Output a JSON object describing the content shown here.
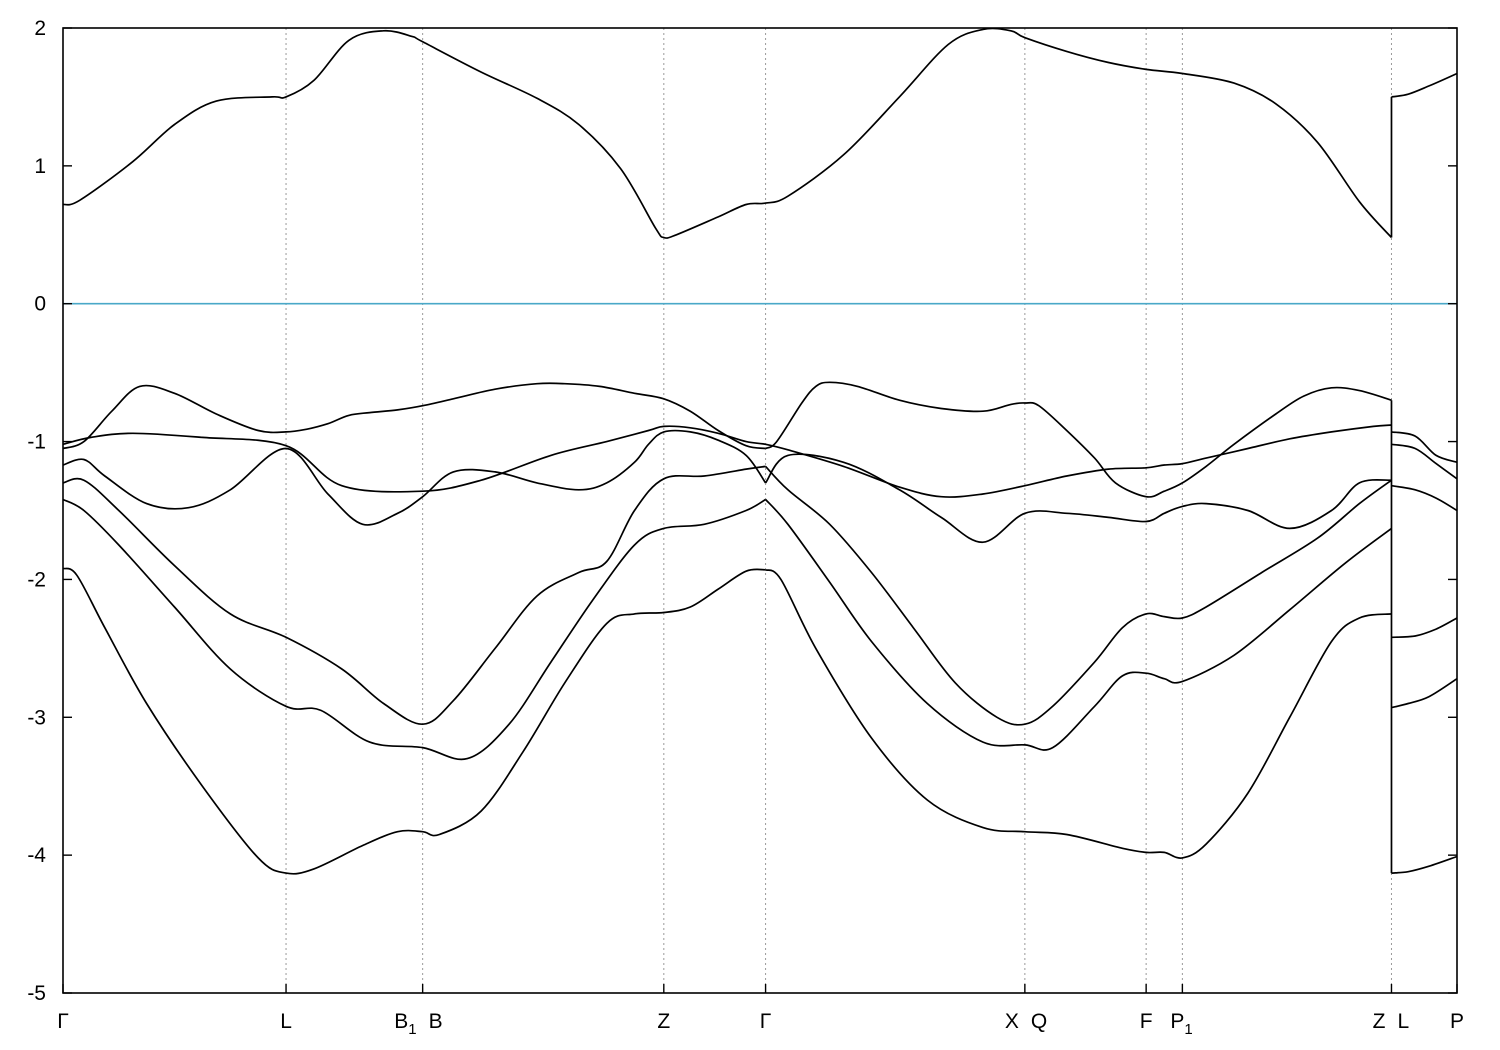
{
  "chart_data": {
    "type": "line",
    "title": "",
    "xlabel": "",
    "ylabel": "",
    "ylim": [
      -5,
      2
    ],
    "xlim": [
      0,
      1
    ],
    "grid": "vertical dashed lines at high-symmetry points",
    "legend": "none",
    "y_ticks": [
      "2",
      "1",
      "0",
      "-1",
      "-2",
      "-3",
      "-4",
      "-5"
    ],
    "y_tick_values": [
      2,
      1,
      0,
      -1,
      -2,
      -3,
      -4,
      -5
    ],
    "k_points": [
      {
        "pos": 0.0,
        "label": "Γ",
        "sub": ""
      },
      {
        "pos": 0.16,
        "label": "L",
        "sub": ""
      },
      {
        "pos": 0.258,
        "label": "B",
        "sub": "1"
      },
      {
        "pos": 0.258,
        "label": "B",
        "sub": ""
      },
      {
        "pos": 0.431,
        "label": "Z",
        "sub": ""
      },
      {
        "pos": 0.504,
        "label": "Γ",
        "sub": ""
      },
      {
        "pos": 0.69,
        "label": "X",
        "sub": ""
      },
      {
        "pos": 0.69,
        "label": "Q",
        "sub": ""
      },
      {
        "pos": 0.777,
        "label": "F",
        "sub": ""
      },
      {
        "pos": 0.803,
        "label": "P",
        "sub": "1"
      },
      {
        "pos": 0.953,
        "label": "Z",
        "sub": ""
      },
      {
        "pos": 0.953,
        "label": "L",
        "sub": ""
      },
      {
        "pos": 1.0,
        "label": "P",
        "sub": ""
      }
    ],
    "fermi_level": {
      "value": 0,
      "color": "#4aa8c8"
    },
    "band_color": "#000000",
    "break_at": 0.953,
    "series": [
      {
        "x": [
          0,
          0.012,
          0.05,
          0.08,
          0.11,
          0.15,
          0.16,
          0.18,
          0.205,
          0.23,
          0.25,
          0.258,
          0.3,
          0.34,
          0.37,
          0.4,
          0.425,
          0.431,
          0.44,
          0.47,
          0.49,
          0.504,
          0.52,
          0.56,
          0.6,
          0.635,
          0.66,
          0.68,
          0.69,
          0.72,
          0.75,
          0.777,
          0.803,
          0.84,
          0.87,
          0.9,
          0.93,
          0.953
        ],
        "y": [
          0.72,
          0.75,
          1.03,
          1.3,
          1.47,
          1.5,
          1.5,
          1.62,
          1.91,
          1.98,
          1.94,
          1.9,
          1.68,
          1.49,
          1.3,
          0.98,
          0.55,
          0.48,
          0.5,
          0.63,
          0.72,
          0.73,
          0.78,
          1.08,
          1.5,
          1.88,
          1.99,
          1.98,
          1.93,
          1.83,
          1.75,
          1.7,
          1.67,
          1.6,
          1.45,
          1.17,
          0.74,
          0.48
        ]
      },
      {
        "x": [
          0.953,
          0.965,
          0.98,
          1.0
        ],
        "y": [
          1.5,
          1.52,
          1.58,
          1.67
        ]
      },
      {
        "x": [
          0,
          0.015,
          0.035,
          0.055,
          0.08,
          0.11,
          0.14,
          0.16,
          0.175,
          0.19,
          0.205,
          0.22,
          0.24,
          0.258,
          0.28,
          0.31,
          0.34,
          0.36,
          0.385,
          0.41,
          0.431,
          0.45,
          0.47,
          0.49,
          0.504
        ],
        "y": [
          -1.05,
          -1.0,
          -0.78,
          -0.6,
          -0.65,
          -0.8,
          -0.92,
          -0.93,
          -0.91,
          -0.87,
          -0.81,
          -0.79,
          -0.77,
          -0.74,
          -0.69,
          -0.62,
          -0.58,
          -0.58,
          -0.6,
          -0.65,
          -0.69,
          -0.78,
          -0.92,
          -1.03,
          -1.05
        ]
      },
      {
        "x": [
          0.504,
          0.512,
          0.53,
          0.54,
          0.55,
          0.57,
          0.6,
          0.63,
          0.66,
          0.68,
          0.69,
          0.7,
          0.72,
          0.74,
          0.755,
          0.777,
          0.79,
          0.803,
          0.82,
          0.84,
          0.87,
          0.89,
          0.91,
          0.93,
          0.953
        ],
        "y": [
          -1.05,
          -1.0,
          -0.72,
          -0.6,
          -0.57,
          -0.6,
          -0.7,
          -0.76,
          -0.78,
          -0.73,
          -0.72,
          -0.74,
          -0.92,
          -1.12,
          -1.3,
          -1.4,
          -1.36,
          -1.3,
          -1.18,
          -1.02,
          -0.8,
          -0.67,
          -0.61,
          -0.63,
          -0.7
        ]
      },
      {
        "x": [
          0.953,
          0.97,
          0.985,
          1.0
        ],
        "y": [
          -0.93,
          -0.96,
          -1.1,
          -1.15
        ]
      },
      {
        "x": [
          0,
          0.02,
          0.05,
          0.1,
          0.16,
          0.2,
          0.258,
          0.3,
          0.35,
          0.39,
          0.42,
          0.431,
          0.45,
          0.47,
          0.49,
          0.504,
          0.52,
          0.56,
          0.6,
          0.63,
          0.66,
          0.69,
          0.72,
          0.75,
          0.777,
          0.79,
          0.803,
          0.82,
          0.85,
          0.88,
          0.91,
          0.94,
          0.953
        ],
        "y": [
          -1.02,
          -0.97,
          -0.94,
          -0.97,
          -1.03,
          -1.32,
          -1.36,
          -1.28,
          -1.1,
          -1.0,
          -0.92,
          -0.89,
          -0.9,
          -0.94,
          -1.0,
          -1.02,
          -1.06,
          -1.18,
          -1.33,
          -1.4,
          -1.38,
          -1.32,
          -1.25,
          -1.2,
          -1.19,
          -1.17,
          -1.16,
          -1.12,
          -1.05,
          -0.98,
          -0.93,
          -0.89,
          -0.88
        ]
      },
      {
        "x": [
          0.953,
          0.97,
          0.985,
          1.0
        ],
        "y": [
          -1.02,
          -1.05,
          -1.16,
          -1.27
        ]
      },
      {
        "x": [
          0,
          0.015,
          0.03,
          0.06,
          0.09,
          0.12,
          0.16,
          0.19,
          0.215,
          0.24,
          0.258,
          0.28,
          0.31,
          0.34,
          0.37,
          0.39,
          0.41,
          0.42,
          0.431,
          0.45,
          0.47,
          0.49,
          0.504
        ],
        "y": [
          -1.17,
          -1.13,
          -1.25,
          -1.45,
          -1.48,
          -1.35,
          -1.05,
          -1.38,
          -1.6,
          -1.52,
          -1.4,
          -1.22,
          -1.22,
          -1.3,
          -1.35,
          -1.3,
          -1.15,
          -1.02,
          -0.93,
          -0.93,
          -0.99,
          -1.1,
          -1.3
        ]
      },
      {
        "x": [
          0.504,
          0.52,
          0.56,
          0.6,
          0.63,
          0.66,
          0.69,
          0.72,
          0.75,
          0.777,
          0.79,
          0.803,
          0.82,
          0.85,
          0.88,
          0.91,
          0.93,
          0.953
        ],
        "y": [
          -1.3,
          -1.1,
          -1.15,
          -1.35,
          -1.55,
          -1.73,
          -1.52,
          -1.52,
          -1.55,
          -1.58,
          -1.52,
          -1.47,
          -1.45,
          -1.5,
          -1.63,
          -1.5,
          -1.3,
          -1.28
        ]
      },
      {
        "x": [
          0.953,
          0.97,
          0.985,
          1.0
        ],
        "y": [
          -1.32,
          -1.35,
          -1.41,
          -1.5
        ]
      },
      {
        "x": [
          0,
          0.015,
          0.04,
          0.08,
          0.12,
          0.16,
          0.2,
          0.23,
          0.258,
          0.28,
          0.31,
          0.34,
          0.37,
          0.39,
          0.41,
          0.431,
          0.46,
          0.49,
          0.504
        ],
        "y": [
          -1.3,
          -1.28,
          -1.5,
          -1.9,
          -2.25,
          -2.42,
          -2.65,
          -2.9,
          -3.05,
          -2.88,
          -2.5,
          -2.12,
          -1.95,
          -1.87,
          -1.5,
          -1.27,
          -1.25,
          -1.2,
          -1.18
        ]
      },
      {
        "x": [
          0.504,
          0.52,
          0.55,
          0.58,
          0.61,
          0.64,
          0.67,
          0.69,
          0.71,
          0.74,
          0.76,
          0.777,
          0.79,
          0.803,
          0.82,
          0.86,
          0.9,
          0.93,
          0.953
        ],
        "y": [
          -1.18,
          -1.35,
          -1.6,
          -1.95,
          -2.35,
          -2.75,
          -3.0,
          -3.05,
          -2.92,
          -2.6,
          -2.35,
          -2.25,
          -2.27,
          -2.28,
          -2.2,
          -1.95,
          -1.7,
          -1.45,
          -1.28
        ]
      },
      {
        "x": [
          0.953,
          0.97,
          0.985,
          1.0
        ],
        "y": [
          -2.42,
          -2.41,
          -2.36,
          -2.28
        ]
      },
      {
        "x": [
          0,
          0.015,
          0.04,
          0.08,
          0.12,
          0.16,
          0.185,
          0.22,
          0.258,
          0.29,
          0.32,
          0.35,
          0.38,
          0.41,
          0.431,
          0.46,
          0.49,
          0.504
        ],
        "y": [
          -1.42,
          -1.5,
          -1.75,
          -2.2,
          -2.65,
          -2.92,
          -2.95,
          -3.18,
          -3.22,
          -3.3,
          -3.05,
          -2.6,
          -2.15,
          -1.75,
          -1.63,
          -1.6,
          -1.5,
          -1.42
        ]
      },
      {
        "x": [
          0.504,
          0.52,
          0.55,
          0.58,
          0.62,
          0.66,
          0.69,
          0.71,
          0.74,
          0.76,
          0.777,
          0.79,
          0.803,
          0.84,
          0.88,
          0.92,
          0.953
        ],
        "y": [
          -1.42,
          -1.6,
          -2.02,
          -2.45,
          -2.9,
          -3.18,
          -3.2,
          -3.22,
          -2.92,
          -2.7,
          -2.68,
          -2.72,
          -2.74,
          -2.55,
          -2.22,
          -1.88,
          -1.63
        ]
      },
      {
        "x": [
          0.953,
          0.965,
          0.98,
          1.0
        ],
        "y": [
          -2.93,
          -2.9,
          -2.85,
          -2.72
        ]
      },
      {
        "x": [
          0,
          0.01,
          0.03,
          0.06,
          0.1,
          0.14,
          0.16,
          0.18,
          0.215,
          0.24,
          0.258,
          0.27,
          0.3,
          0.33,
          0.36,
          0.39,
          0.41,
          0.431,
          0.45,
          0.47,
          0.49,
          0.504
        ],
        "y": [
          -1.92,
          -1.97,
          -2.35,
          -2.9,
          -3.5,
          -4.02,
          -4.13,
          -4.1,
          -3.93,
          -3.83,
          -3.83,
          -3.85,
          -3.68,
          -3.25,
          -2.75,
          -2.32,
          -2.25,
          -2.24,
          -2.2,
          -2.07,
          -1.94,
          -1.93
        ]
      },
      {
        "x": [
          0.504,
          0.515,
          0.54,
          0.58,
          0.62,
          0.66,
          0.69,
          0.72,
          0.76,
          0.777,
          0.79,
          0.803,
          0.82,
          0.85,
          0.88,
          0.91,
          0.93,
          0.953
        ],
        "y": [
          -1.93,
          -2.0,
          -2.5,
          -3.15,
          -3.6,
          -3.8,
          -3.83,
          -3.85,
          -3.95,
          -3.98,
          -3.98,
          -4.02,
          -3.92,
          -3.55,
          -3.0,
          -2.45,
          -2.28,
          -2.25
        ]
      },
      {
        "x": [
          0.953,
          0.965,
          0.98,
          1.0
        ],
        "y": [
          -4.13,
          -4.12,
          -4.08,
          -4.01
        ]
      }
    ]
  }
}
